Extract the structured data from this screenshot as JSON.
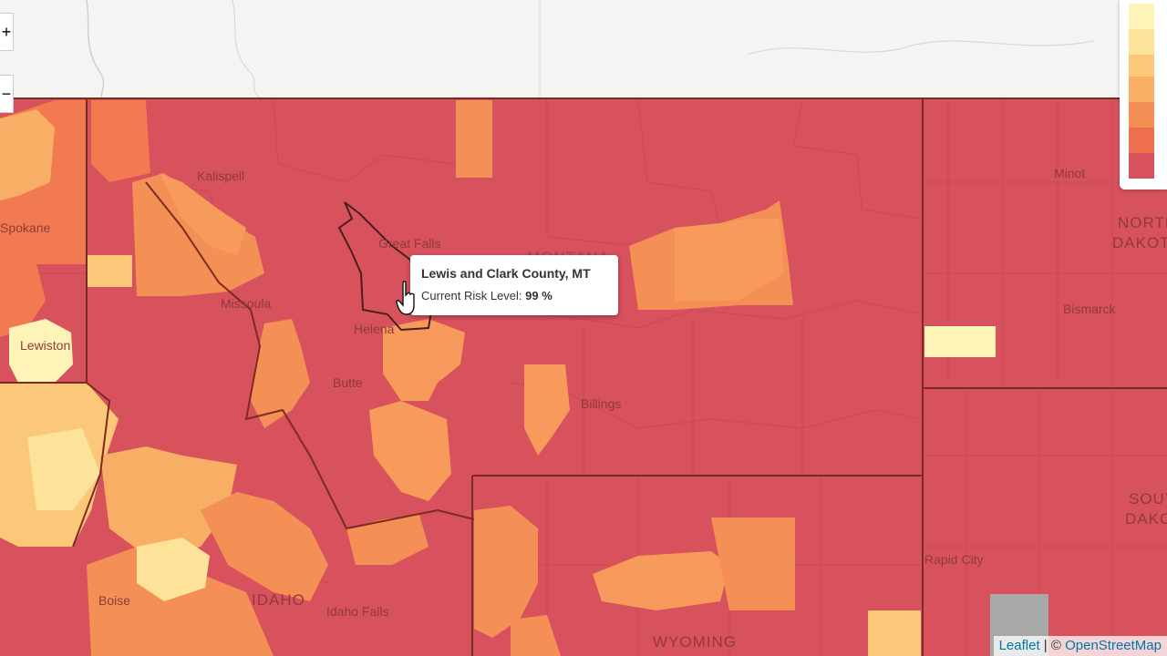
{
  "colors": {
    "risk_very_high": "#d8525e",
    "risk_high": "#f27a51",
    "risk_med_high": "#f89a5c",
    "risk_medium": "#fbb96e",
    "risk_low": "#fdd98c",
    "risk_very_low": "#fff4b8",
    "no_data": "#a8a8a8",
    "basemap": "#f4f4f2",
    "state_border": "#7a2b22"
  },
  "tooltip": {
    "title": "Lewis and Clark County, MT",
    "risk_label": "Current Risk Level:",
    "risk_value": "99 %"
  },
  "zoom": {
    "in_label": "+",
    "out_label": "−"
  },
  "legend": {
    "swatches": [
      "#fff4b8",
      "#fde399",
      "#fbc879",
      "#f9ae66",
      "#f48f56",
      "#ee6f4d",
      "#d8525e",
      "#a8a8a8"
    ]
  },
  "places": {
    "kalispell": "Kalispell",
    "great_falls": "Great Falls",
    "missoula": "Missoula",
    "helena": "Helena",
    "butte": "Butte",
    "billings": "Billings",
    "spokane": "Spokane",
    "lewiston": "Lewiston",
    "boise": "Boise",
    "idaho_falls": "Idaho Falls",
    "minot": "Minot",
    "bismarck": "Bismarck",
    "rapid_city": "Rapid City",
    "montana": "MONTANA",
    "idaho": "IDAHO",
    "wyoming": "WYOMING",
    "north_dakota_1": "NORTH",
    "north_dakota_2": "DAKOTA",
    "south_dakota_1": "SOUTH",
    "south_dakota_2": "DAKOTA"
  },
  "attribution": {
    "leaflet": "Leaflet",
    "separator": " | © ",
    "osm": "OpenStreetMap"
  }
}
